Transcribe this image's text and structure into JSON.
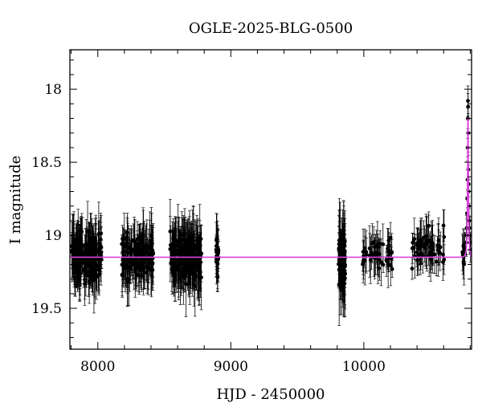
{
  "chart_data": {
    "type": "scatter",
    "title": "OGLE-2025-BLG-0500",
    "xlabel": "HJD - 2450000",
    "ylabel": "I magnitude",
    "xlim": [
      7790,
      10810
    ],
    "ylim": [
      19.78,
      17.73
    ],
    "y_inverted": true,
    "x_ticks": [
      8000,
      9000,
      10000
    ],
    "y_ticks": [
      18,
      18.5,
      19,
      19.5
    ],
    "grid": false,
    "baseline_magnitude": 19.15,
    "colors": {
      "points": "#000000",
      "model": "#e040e0",
      "frame": "#000000"
    },
    "observing_seasons": [
      {
        "x_start": 7800,
        "x_end": 8030,
        "mean_mag": 19.15,
        "scatter": 0.12,
        "n": 170
      },
      {
        "x_start": 8180,
        "x_end": 8420,
        "mean_mag": 19.14,
        "scatter": 0.11,
        "n": 160
      },
      {
        "x_start": 8540,
        "x_end": 8780,
        "mean_mag": 19.14,
        "scatter": 0.13,
        "n": 190
      },
      {
        "x_start": 8890,
        "x_end": 8910,
        "mean_mag": 19.12,
        "scatter": 0.1,
        "n": 30
      },
      {
        "x_start": 9810,
        "x_end": 9860,
        "mean_mag": 19.16,
        "scatter": 0.15,
        "n": 90
      },
      {
        "x_start": 9990,
        "x_end": 10220,
        "mean_mag": 19.13,
        "scatter": 0.09,
        "n": 50
      },
      {
        "x_start": 10360,
        "x_end": 10610,
        "mean_mag": 19.1,
        "scatter": 0.1,
        "n": 60
      },
      {
        "x_start": 10740,
        "x_end": 10760,
        "mean_mag": 19.1,
        "scatter": 0.08,
        "n": 10
      }
    ],
    "event_points": [
      [
        10770,
        19.05
      ],
      [
        10772,
        19.0
      ],
      [
        10774,
        18.95
      ],
      [
        10776,
        18.85
      ],
      [
        10778,
        18.75
      ],
      [
        10780,
        18.62
      ],
      [
        10781,
        18.4
      ],
      [
        10782,
        18.2
      ],
      [
        10783,
        18.08
      ],
      [
        10784,
        18.12
      ],
      [
        10785,
        18.3
      ],
      [
        10786,
        18.55
      ],
      [
        10787,
        18.7
      ],
      [
        10788,
        18.65
      ],
      [
        10789,
        18.8
      ],
      [
        10791,
        18.9
      ],
      [
        10793,
        18.95
      ],
      [
        10796,
        19.0
      ],
      [
        10799,
        19.05
      ],
      [
        10802,
        19.1
      ]
    ],
    "model_curve": [
      [
        7790,
        19.15
      ],
      [
        10740,
        19.15
      ],
      [
        10760,
        19.14
      ],
      [
        10770,
        19.1
      ],
      [
        10775,
        19.0
      ],
      [
        10778,
        18.85
      ],
      [
        10780,
        18.6
      ],
      [
        10781,
        18.5
      ],
      [
        10782,
        18.2
      ],
      [
        10784,
        18.2
      ],
      [
        10785,
        18.5
      ],
      [
        10786,
        18.6
      ],
      [
        10788,
        18.85
      ],
      [
        10791,
        19.0
      ],
      [
        10796,
        19.1
      ],
      [
        10810,
        19.15
      ]
    ]
  }
}
